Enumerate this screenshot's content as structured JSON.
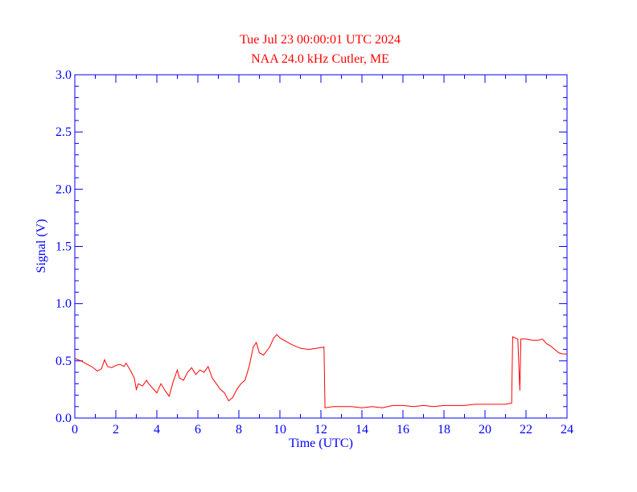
{
  "chart_data": {
    "type": "line",
    "title": "Tue Jul 23 00:00:01 UTC 2024",
    "subtitle": "NAA 24.0 kHz Cutler, ME",
    "x_label": "Time (UTC)",
    "y_label": "Signal (V)",
    "axis_color": "#0000ff",
    "title_color": "#ff0000",
    "xlim": [
      0,
      24
    ],
    "xticks": [
      0,
      2,
      4,
      6,
      8,
      10,
      12,
      14,
      16,
      18,
      20,
      22,
      24
    ],
    "ylim": [
      0,
      3
    ],
    "yticks": [
      {
        "value": 0,
        "label": "0.0"
      },
      0.5,
      {
        "value": 1,
        "label": "1.0"
      },
      1.5,
      {
        "value": 2,
        "label": "2.0"
      },
      2.5,
      {
        "value": 3,
        "label": "3.0"
      }
    ],
    "x": [
      0,
      0.3,
      0.6,
      0.9,
      1.1,
      1.3,
      1.45,
      1.6,
      1.8,
      2.0,
      2.2,
      2.4,
      2.5,
      2.7,
      2.9,
      3.0,
      3.1,
      3.3,
      3.5,
      3.6,
      3.8,
      4.0,
      4.2,
      4.4,
      4.6,
      4.8,
      5.0,
      5.1,
      5.3,
      5.5,
      5.7,
      5.9,
      6.1,
      6.3,
      6.5,
      6.7,
      6.9,
      7.1,
      7.3,
      7.5,
      7.7,
      7.9,
      8.1,
      8.3,
      8.5,
      8.7,
      8.85,
      9.0,
      9.2,
      9.5,
      9.7,
      9.85,
      10.0,
      10.3,
      10.6,
      11.0,
      11.4,
      11.8,
      12.15,
      12.2,
      12.6,
      13.0,
      13.5,
      14.0,
      14.5,
      15.0,
      15.5,
      16.0,
      16.5,
      17.0,
      17.5,
      18.0,
      18.5,
      19.0,
      19.5,
      20.0,
      20.5,
      21.0,
      21.3,
      21.35,
      21.6,
      21.7,
      21.75,
      22.0,
      22.3,
      22.6,
      22.8,
      23.0,
      23.2,
      23.4,
      23.6,
      23.8,
      24.0
    ],
    "series": [
      {
        "name": "Signal",
        "color": "#ff0000",
        "values": [
          0.52,
          0.5,
          0.47,
          0.44,
          0.41,
          0.43,
          0.51,
          0.45,
          0.44,
          0.46,
          0.47,
          0.45,
          0.48,
          0.42,
          0.35,
          0.25,
          0.3,
          0.28,
          0.33,
          0.3,
          0.26,
          0.22,
          0.3,
          0.24,
          0.19,
          0.32,
          0.42,
          0.35,
          0.33,
          0.4,
          0.44,
          0.38,
          0.42,
          0.4,
          0.45,
          0.35,
          0.3,
          0.25,
          0.22,
          0.15,
          0.18,
          0.25,
          0.3,
          0.33,
          0.45,
          0.62,
          0.66,
          0.57,
          0.55,
          0.62,
          0.7,
          0.73,
          0.7,
          0.67,
          0.64,
          0.61,
          0.6,
          0.61,
          0.62,
          0.09,
          0.1,
          0.1,
          0.1,
          0.09,
          0.1,
          0.09,
          0.11,
          0.11,
          0.1,
          0.11,
          0.1,
          0.11,
          0.11,
          0.11,
          0.12,
          0.12,
          0.12,
          0.12,
          0.13,
          0.71,
          0.69,
          0.24,
          0.69,
          0.69,
          0.68,
          0.68,
          0.69,
          0.65,
          0.63,
          0.6,
          0.57,
          0.56,
          0.56
        ]
      }
    ]
  }
}
